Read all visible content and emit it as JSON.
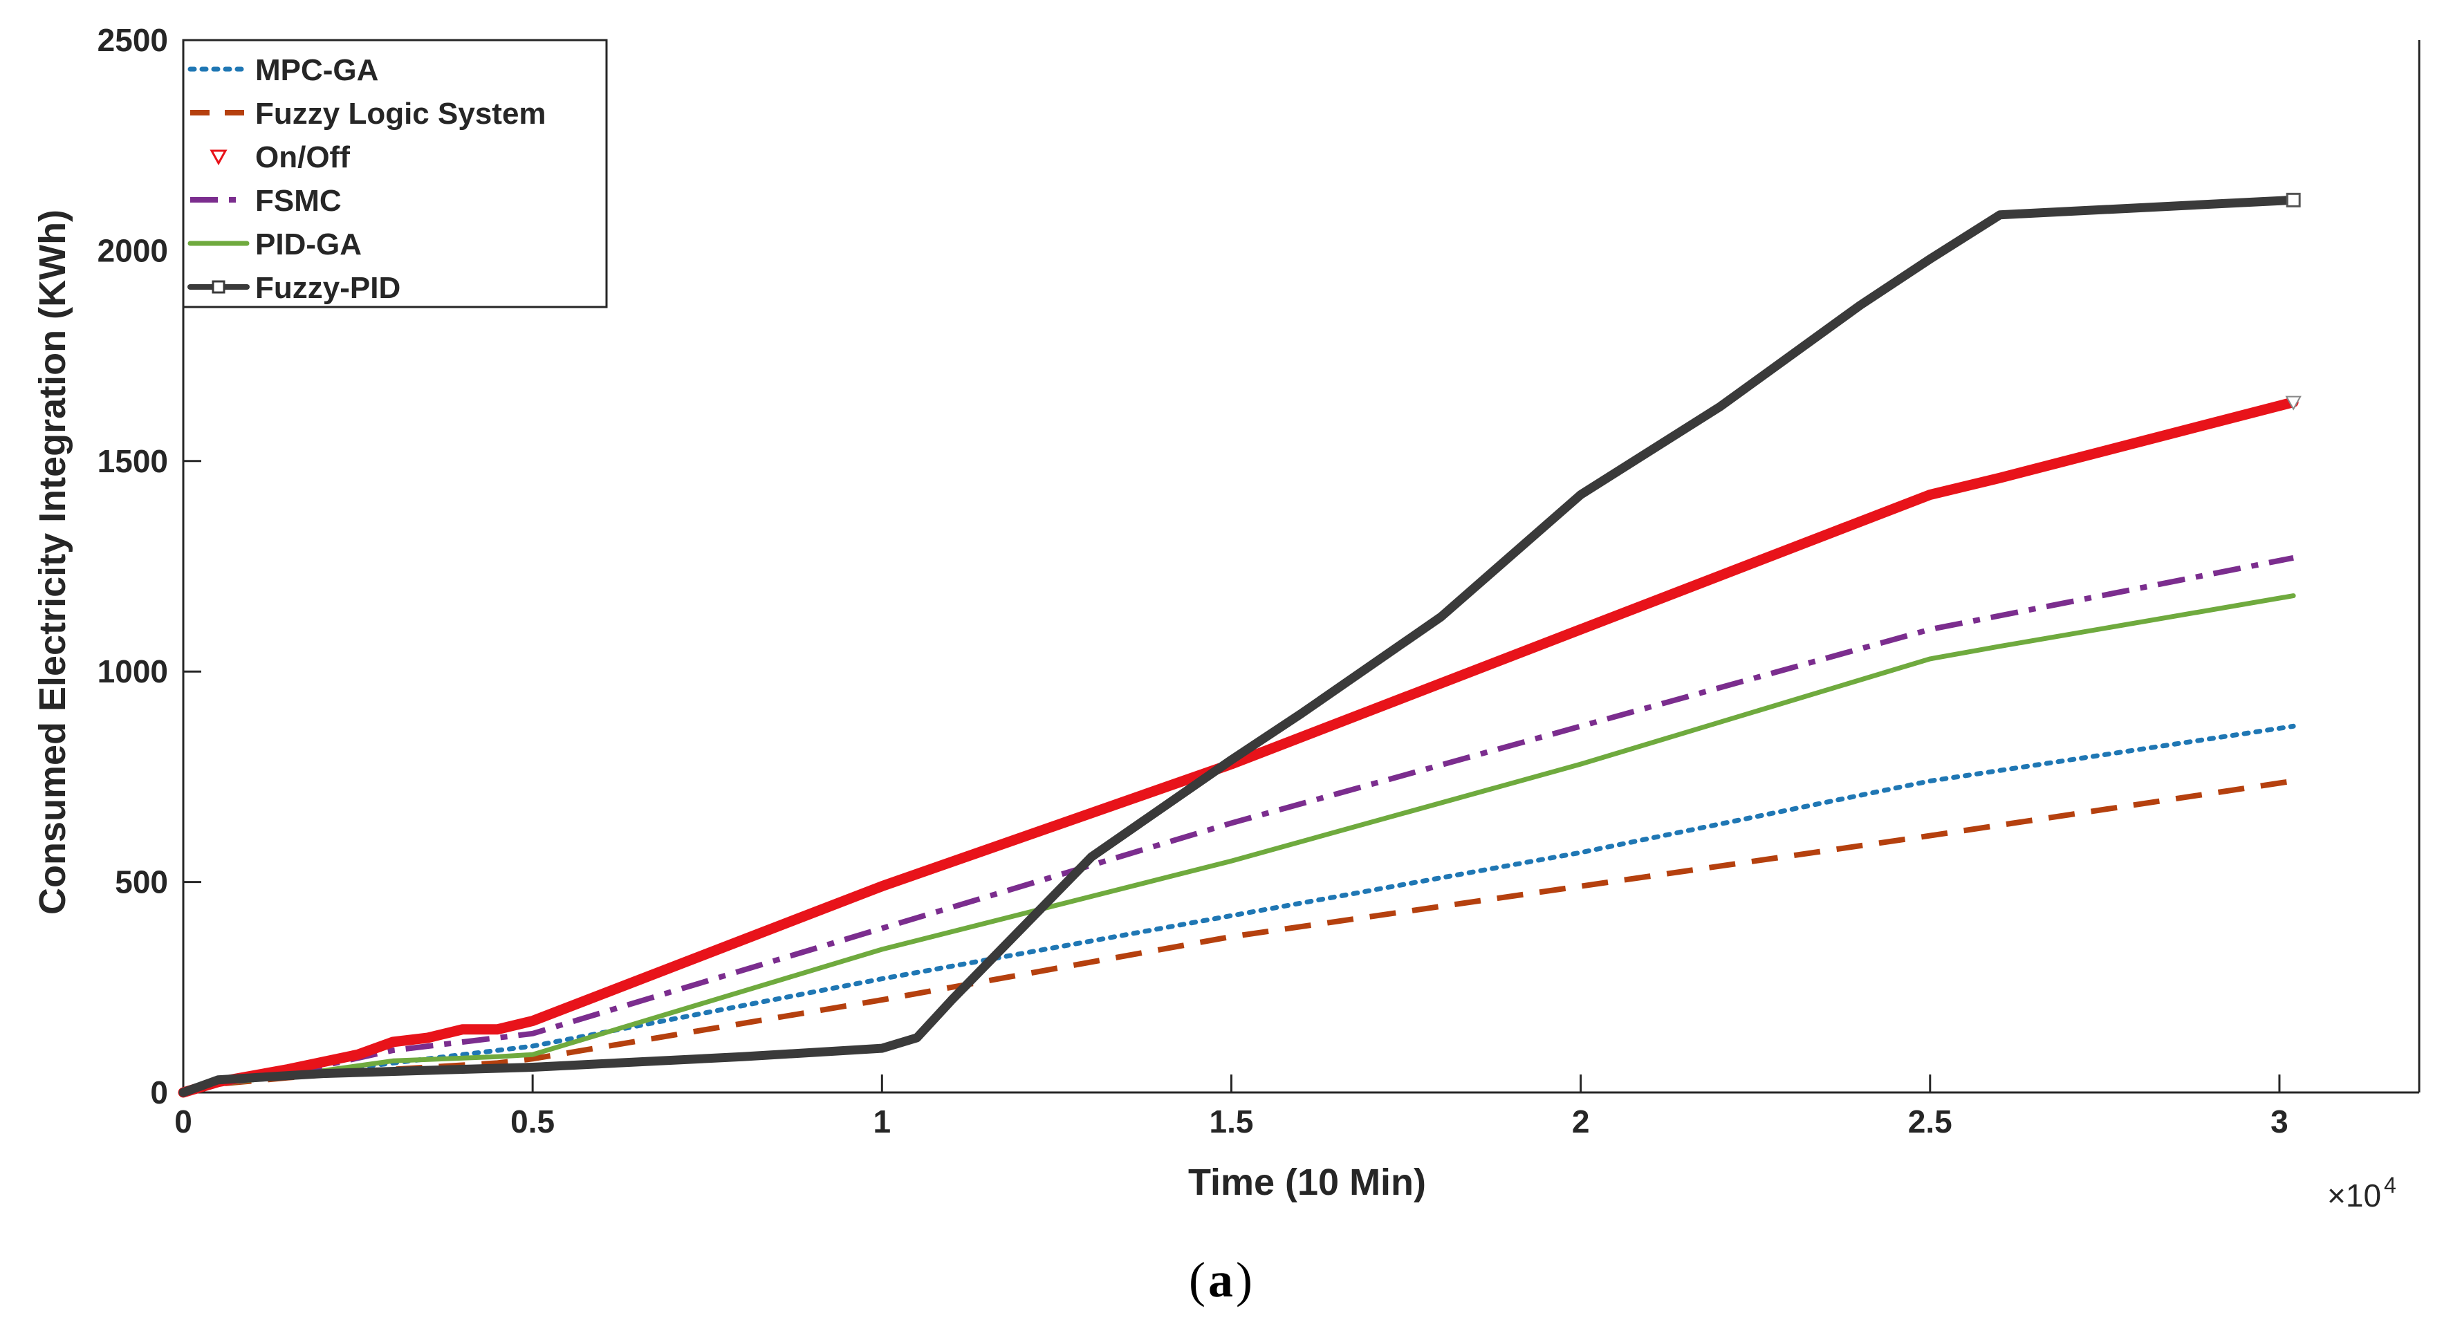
{
  "chart_data": {
    "type": "line",
    "title": "",
    "xlabel": "Time (10 Min)",
    "ylabel": "Consumed Electricity Integration (KWh)",
    "x_exponent_label": "×10",
    "x_exponent_power": "4",
    "caption_open": "(",
    "caption_letter": "a",
    "caption_close": ")",
    "xlim": [
      0,
      3.2
    ],
    "ylim": [
      0,
      2500
    ],
    "x_tick_values": [
      0,
      0.5,
      1,
      1.5,
      2,
      2.5,
      3
    ],
    "x_tick_labels": [
      "0",
      "0.5",
      "1",
      "1.5",
      "2",
      "2.5",
      "3"
    ],
    "y_tick_values": [
      0,
      500,
      1000,
      1500,
      2000,
      2500
    ],
    "y_tick_labels": [
      "0",
      "500",
      "1000",
      "1500",
      "2000",
      "2500"
    ],
    "legend_position": "top-left",
    "series": [
      {
        "name": "MPC-GA",
        "color": "#1f77b4",
        "style": "dotted",
        "x": [
          0,
          0.05,
          0.15,
          0.3,
          0.45,
          0.5,
          1.0,
          1.5,
          2.0,
          2.5,
          3.02
        ],
        "y": [
          0,
          20,
          40,
          70,
          100,
          110,
          270,
          420,
          570,
          740,
          870
        ]
      },
      {
        "name": "Fuzzy Logic System",
        "color": "#b5400e",
        "style": "dashed",
        "x": [
          0,
          0.05,
          0.15,
          0.3,
          0.45,
          0.5,
          1.0,
          1.5,
          2.0,
          2.5,
          3.02
        ],
        "y": [
          0,
          20,
          35,
          55,
          70,
          80,
          220,
          370,
          490,
          610,
          740
        ]
      },
      {
        "name": "On/Off",
        "color": "#e8131a",
        "style": "solid-thick",
        "x": [
          0,
          0.05,
          0.15,
          0.25,
          0.3,
          0.35,
          0.4,
          0.45,
          0.5,
          1.0,
          1.5,
          2.0,
          2.5,
          2.6,
          3.02
        ],
        "y": [
          0,
          25,
          55,
          90,
          120,
          130,
          150,
          150,
          170,
          490,
          780,
          1100,
          1420,
          1460,
          1640
        ]
      },
      {
        "name": "FSMC",
        "color": "#7b2d8e",
        "style": "dashdot",
        "x": [
          0,
          0.05,
          0.15,
          0.3,
          0.45,
          0.5,
          1.0,
          1.5,
          2.0,
          2.5,
          3.02
        ],
        "y": [
          0,
          20,
          45,
          100,
          130,
          140,
          390,
          640,
          870,
          1100,
          1270
        ]
      },
      {
        "name": "PID-GA",
        "color": "#6faa3e",
        "style": "solid",
        "x": [
          0,
          0.05,
          0.15,
          0.3,
          0.45,
          0.5,
          1.0,
          1.5,
          2.0,
          2.5,
          2.6,
          3.02
        ],
        "y": [
          0,
          20,
          40,
          75,
          85,
          90,
          340,
          550,
          780,
          1030,
          1060,
          1180
        ]
      },
      {
        "name": "Fuzzy-PID",
        "color": "#3a3a3a",
        "style": "solid-thick-marker",
        "x": [
          0,
          0.05,
          0.2,
          0.5,
          0.8,
          1.0,
          1.05,
          1.1,
          1.3,
          1.5,
          1.6,
          1.8,
          2.0,
          2.2,
          2.4,
          2.5,
          2.6,
          3.02
        ],
        "y": [
          0,
          30,
          45,
          60,
          85,
          105,
          130,
          220,
          560,
          790,
          900,
          1130,
          1420,
          1630,
          1870,
          1980,
          2085,
          2120
        ]
      }
    ]
  }
}
